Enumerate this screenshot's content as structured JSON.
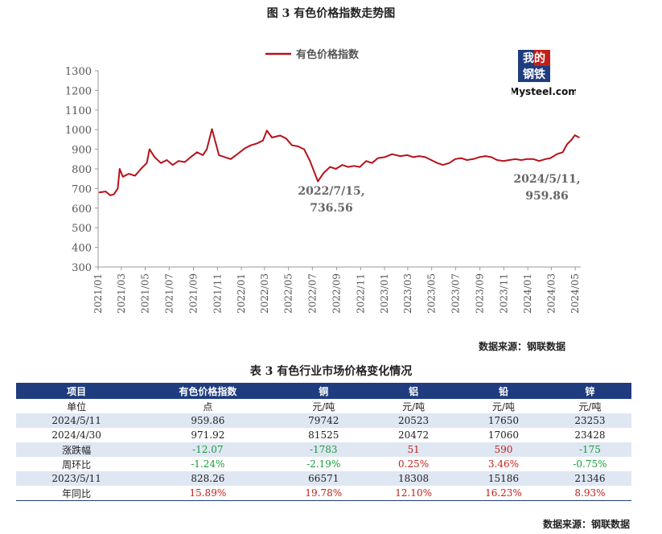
{
  "figure": {
    "title": "图 3  有色价格指数走势图",
    "source": "数据来源：钢联数据"
  },
  "logo": {
    "cn_line1": "我的",
    "cn_line2": "钢铁",
    "en": "Mysteel.com"
  },
  "colors": {
    "line": "#b5121b",
    "header": "#1f3c7e",
    "alt_row": "#dfe7f3",
    "positive": "#c0201a",
    "negative": "#1a9a3a"
  },
  "chart_data": {
    "type": "line",
    "legend": "top",
    "grid": false,
    "ylim": [
      300,
      1300
    ],
    "yticks": [
      300,
      400,
      500,
      600,
      700,
      800,
      900,
      1000,
      1100,
      1200,
      1300
    ],
    "xticks": [
      "2021/01",
      "2021/03",
      "2021/05",
      "2021/07",
      "2021/09",
      "2021/11",
      "2022/01",
      "2022/03",
      "2022/05",
      "2022/07",
      "2022/09",
      "2022/11",
      "2023/01",
      "2023/03",
      "2023/05",
      "2023/07",
      "2023/09",
      "2023/11",
      "2024/01",
      "2024/03",
      "2024/05"
    ],
    "series": [
      {
        "name": "有色价格指数",
        "points": [
          [
            "2021/01/04",
            680
          ],
          [
            "2021/01/20",
            685
          ],
          [
            "2021/02/01",
            665
          ],
          [
            "2021/02/10",
            670
          ],
          [
            "2021/02/20",
            700
          ],
          [
            "2021/02/25",
            800
          ],
          [
            "2021/03/05",
            760
          ],
          [
            "2021/03/20",
            775
          ],
          [
            "2021/04/05",
            765
          ],
          [
            "2021/04/20",
            800
          ],
          [
            "2021/05/05",
            830
          ],
          [
            "2021/05/12",
            900
          ],
          [
            "2021/05/25",
            860
          ],
          [
            "2021/06/10",
            830
          ],
          [
            "2021/06/25",
            845
          ],
          [
            "2021/07/10",
            820
          ],
          [
            "2021/07/25",
            840
          ],
          [
            "2021/08/10",
            835
          ],
          [
            "2021/08/25",
            860
          ],
          [
            "2021/09/10",
            885
          ],
          [
            "2021/09/25",
            870
          ],
          [
            "2021/10/05",
            900
          ],
          [
            "2021/10/18",
            1003
          ],
          [
            "2021/10/28",
            930
          ],
          [
            "2021/11/05",
            870
          ],
          [
            "2021/11/20",
            860
          ],
          [
            "2021/12/05",
            850
          ],
          [
            "2021/12/25",
            880
          ],
          [
            "2022/01/10",
            905
          ],
          [
            "2022/01/25",
            920
          ],
          [
            "2022/02/10",
            930
          ],
          [
            "2022/02/25",
            945
          ],
          [
            "2022/03/07",
            995
          ],
          [
            "2022/03/20",
            960
          ],
          [
            "2022/04/10",
            970
          ],
          [
            "2022/04/25",
            955
          ],
          [
            "2022/05/10",
            920
          ],
          [
            "2022/05/25",
            915
          ],
          [
            "2022/06/10",
            900
          ],
          [
            "2022/06/25",
            840
          ],
          [
            "2022/07/15",
            736.56
          ],
          [
            "2022/07/30",
            780
          ],
          [
            "2022/08/15",
            810
          ],
          [
            "2022/08/30",
            800
          ],
          [
            "2022/09/15",
            820
          ],
          [
            "2022/09/30",
            810
          ],
          [
            "2022/10/15",
            815
          ],
          [
            "2022/10/30",
            810
          ],
          [
            "2022/11/15",
            840
          ],
          [
            "2022/11/30",
            830
          ],
          [
            "2022/12/15",
            855
          ],
          [
            "2023/01/01",
            860
          ],
          [
            "2023/01/20",
            875
          ],
          [
            "2023/02/10",
            865
          ],
          [
            "2023/02/28",
            870
          ],
          [
            "2023/03/15",
            860
          ],
          [
            "2023/03/30",
            865
          ],
          [
            "2023/04/15",
            860
          ],
          [
            "2023/04/30",
            845
          ],
          [
            "2023/05/15",
            830
          ],
          [
            "2023/05/30",
            820
          ],
          [
            "2023/06/15",
            830
          ],
          [
            "2023/06/30",
            850
          ],
          [
            "2023/07/15",
            855
          ],
          [
            "2023/07/30",
            845
          ],
          [
            "2023/08/15",
            850
          ],
          [
            "2023/08/30",
            860
          ],
          [
            "2023/09/15",
            865
          ],
          [
            "2023/09/30",
            860
          ],
          [
            "2023/10/15",
            845
          ],
          [
            "2023/10/30",
            840
          ],
          [
            "2023/11/15",
            845
          ],
          [
            "2023/11/30",
            850
          ],
          [
            "2023/12/15",
            845
          ],
          [
            "2023/12/30",
            850
          ],
          [
            "2024/01/15",
            850
          ],
          [
            "2024/01/30",
            840
          ],
          [
            "2024/02/15",
            850
          ],
          [
            "2024/02/28",
            855
          ],
          [
            "2024/03/15",
            875
          ],
          [
            "2024/03/30",
            885
          ],
          [
            "2024/04/10",
            925
          ],
          [
            "2024/04/20",
            945
          ],
          [
            "2024/04/30",
            971.92
          ],
          [
            "2024/05/11",
            959.86
          ]
        ]
      }
    ],
    "annotations": [
      {
        "x": "2022/07/15",
        "y": 736.56,
        "label1": "2022/7/15,",
        "label2": "736.56"
      },
      {
        "x": "2024/05/11",
        "y": 959.86,
        "label1": "2024/5/11,",
        "label2": "959.86"
      }
    ]
  },
  "table": {
    "title": "表 3 有色行业市场价格变化情况",
    "source": "数据来源：钢联数据",
    "headers": [
      "项目",
      "有色价格指数",
      "铜",
      "铝",
      "铅",
      "锌"
    ],
    "rows": [
      {
        "label": "单位",
        "cells": [
          "点",
          "元/吨",
          "元/吨",
          "元/吨",
          "元/吨"
        ],
        "tones": [
          "",
          "",
          "",
          "",
          ""
        ]
      },
      {
        "label": "2024/5/11",
        "cells": [
          "959.86",
          "79742",
          "20523",
          "17650",
          "23253"
        ],
        "tones": [
          "",
          "",
          "",
          "",
          ""
        ]
      },
      {
        "label": "2024/4/30",
        "cells": [
          "971.92",
          "81525",
          "20472",
          "17060",
          "23428"
        ],
        "tones": [
          "",
          "",
          "",
          "",
          ""
        ]
      },
      {
        "label": "涨跌幅",
        "cells": [
          "-12.07",
          "-1783",
          "51",
          "590",
          "-175"
        ],
        "tones": [
          "neg",
          "neg",
          "pos",
          "pos",
          "neg"
        ]
      },
      {
        "label": "周环比",
        "cells": [
          "-1.24%",
          "-2.19%",
          "0.25%",
          "3.46%",
          "-0.75%"
        ],
        "tones": [
          "neg",
          "neg",
          "pos",
          "pos",
          "neg"
        ]
      },
      {
        "label": "2023/5/11",
        "cells": [
          "828.26",
          "66571",
          "18308",
          "15186",
          "21346"
        ],
        "tones": [
          "",
          "",
          "",
          "",
          ""
        ]
      },
      {
        "label": "年同比",
        "cells": [
          "15.89%",
          "19.78%",
          "12.10%",
          "16.23%",
          "8.93%"
        ],
        "tones": [
          "pos",
          "pos",
          "pos",
          "pos",
          "pos"
        ]
      }
    ]
  }
}
